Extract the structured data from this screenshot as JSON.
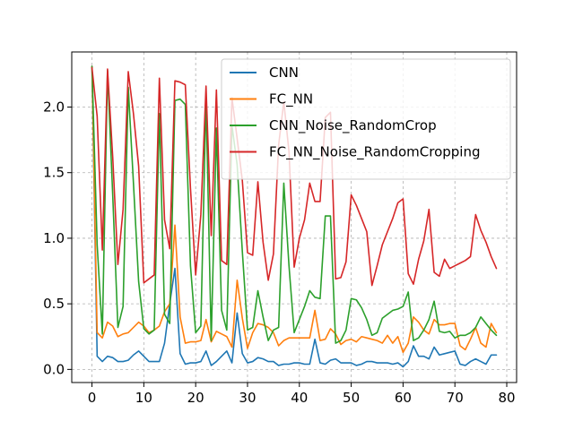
{
  "chart_data": {
    "type": "line",
    "title": "",
    "xlabel": "",
    "ylabel": "",
    "xlim": [
      -3.9,
      81.9
    ],
    "ylim": [
      -0.1,
      2.42
    ],
    "grid": true,
    "legend_location": "upper right",
    "x_ticks": [
      0,
      10,
      20,
      30,
      40,
      50,
      60,
      70,
      80
    ],
    "y_ticks": [
      0.0,
      0.5,
      1.0,
      1.5,
      2.0
    ],
    "x_tick_labels": [
      "0",
      "10",
      "20",
      "30",
      "40",
      "50",
      "60",
      "70",
      "80"
    ],
    "y_tick_labels": [
      "0.0",
      "0.5",
      "1.0",
      "1.5",
      "2.0"
    ],
    "series": [
      {
        "name": "CNN",
        "color": "#1f77b4",
        "x": [
          0,
          1,
          2,
          3,
          4,
          5,
          6,
          7,
          8,
          9,
          10,
          11,
          12,
          13,
          14,
          15,
          16,
          17,
          18,
          19,
          20,
          21,
          22,
          23,
          24,
          25,
          26,
          27,
          28,
          29,
          30,
          31,
          32,
          33,
          34,
          35,
          36,
          37,
          38,
          39,
          40,
          41,
          42,
          43,
          44,
          45,
          46,
          47,
          48,
          49,
          50,
          51,
          52,
          53,
          54,
          55,
          56,
          57,
          58,
          59,
          60,
          61,
          62,
          63,
          64,
          65,
          66,
          67,
          68,
          69,
          70,
          71,
          72,
          73,
          74,
          75,
          76,
          77,
          78
        ],
        "values": [
          2.31,
          0.1,
          0.06,
          0.1,
          0.09,
          0.06,
          0.06,
          0.07,
          0.11,
          0.14,
          0.1,
          0.06,
          0.06,
          0.06,
          0.2,
          0.5,
          0.77,
          0.12,
          0.04,
          0.05,
          0.05,
          0.06,
          0.14,
          0.03,
          0.06,
          0.1,
          0.14,
          0.05,
          0.43,
          0.12,
          0.05,
          0.06,
          0.09,
          0.08,
          0.06,
          0.06,
          0.03,
          0.04,
          0.04,
          0.05,
          0.05,
          0.04,
          0.04,
          0.23,
          0.05,
          0.04,
          0.07,
          0.08,
          0.05,
          0.05,
          0.05,
          0.03,
          0.04,
          0.06,
          0.06,
          0.05,
          0.05,
          0.05,
          0.04,
          0.05,
          0.02,
          0.06,
          0.18,
          0.1,
          0.1,
          0.08,
          0.17,
          0.11,
          0.12,
          0.13,
          0.14,
          0.04,
          0.03,
          0.06,
          0.08,
          0.06,
          0.04,
          0.11,
          0.11
        ]
      },
      {
        "name": "FC_NN",
        "color": "#ff7f0e",
        "x": [
          0,
          1,
          2,
          3,
          4,
          5,
          6,
          7,
          8,
          9,
          10,
          11,
          12,
          13,
          14,
          15,
          16,
          17,
          18,
          19,
          20,
          21,
          22,
          23,
          24,
          25,
          26,
          27,
          28,
          29,
          30,
          31,
          32,
          33,
          34,
          35,
          36,
          37,
          38,
          39,
          40,
          41,
          42,
          43,
          44,
          45,
          46,
          47,
          48,
          49,
          50,
          51,
          52,
          53,
          54,
          55,
          56,
          57,
          58,
          59,
          60,
          61,
          62,
          63,
          64,
          65,
          66,
          67,
          68,
          69,
          70,
          71,
          72,
          73,
          74,
          75,
          76,
          77,
          78
        ],
        "values": [
          2.31,
          0.28,
          0.24,
          0.36,
          0.33,
          0.25,
          0.27,
          0.28,
          0.32,
          0.36,
          0.33,
          0.28,
          0.3,
          0.33,
          0.44,
          0.5,
          1.1,
          0.4,
          0.2,
          0.21,
          0.21,
          0.22,
          0.38,
          0.21,
          0.29,
          0.27,
          0.25,
          0.17,
          0.68,
          0.39,
          0.16,
          0.28,
          0.35,
          0.34,
          0.32,
          0.28,
          0.18,
          0.22,
          0.24,
          0.24,
          0.24,
          0.24,
          0.24,
          0.45,
          0.22,
          0.23,
          0.31,
          0.27,
          0.19,
          0.22,
          0.23,
          0.21,
          0.25,
          0.24,
          0.23,
          0.22,
          0.2,
          0.26,
          0.2,
          0.25,
          0.13,
          0.2,
          0.4,
          0.36,
          0.3,
          0.27,
          0.38,
          0.34,
          0.34,
          0.35,
          0.35,
          0.18,
          0.15,
          0.23,
          0.32,
          0.2,
          0.17,
          0.35,
          0.28
        ]
      },
      {
        "name": "CNN_Noise_RandomCrop",
        "color": "#2ca02c",
        "x": [
          0,
          1,
          2,
          3,
          4,
          5,
          6,
          7,
          8,
          9,
          10,
          11,
          12,
          13,
          14,
          15,
          16,
          17,
          18,
          19,
          20,
          21,
          22,
          23,
          24,
          25,
          26,
          27,
          28,
          29,
          30,
          31,
          32,
          33,
          34,
          35,
          36,
          37,
          38,
          39,
          40,
          41,
          42,
          43,
          44,
          45,
          46,
          47,
          48,
          49,
          50,
          51,
          52,
          53,
          54,
          55,
          56,
          57,
          58,
          59,
          60,
          61,
          62,
          63,
          64,
          65,
          66,
          67,
          68,
          69,
          70,
          71,
          72,
          73,
          74,
          75,
          76,
          77,
          78
        ],
        "values": [
          2.31,
          0.95,
          0.27,
          2.28,
          1.33,
          0.32,
          0.48,
          2.15,
          1.42,
          0.67,
          0.31,
          0.27,
          0.3,
          1.95,
          0.42,
          0.35,
          2.05,
          2.06,
          2.02,
          0.79,
          0.28,
          0.33,
          2.07,
          0.22,
          1.84,
          0.45,
          0.3,
          1.86,
          1.56,
          0.9,
          0.3,
          0.32,
          0.6,
          0.4,
          0.22,
          0.3,
          0.32,
          1.42,
          0.79,
          0.28,
          0.38,
          0.48,
          0.6,
          0.55,
          0.54,
          1.17,
          1.17,
          0.2,
          0.22,
          0.3,
          0.54,
          0.53,
          0.47,
          0.38,
          0.26,
          0.28,
          0.39,
          0.42,
          0.45,
          0.46,
          0.48,
          0.59,
          0.22,
          0.24,
          0.3,
          0.38,
          0.52,
          0.29,
          0.28,
          0.29,
          0.24,
          0.26,
          0.26,
          0.28,
          0.32,
          0.4,
          0.35,
          0.3,
          0.26
        ]
      },
      {
        "name": "FC_NN_Noise_RandomCropping",
        "color": "#d62728",
        "x": [
          0,
          1,
          2,
          3,
          4,
          5,
          6,
          7,
          8,
          9,
          10,
          11,
          12,
          13,
          14,
          15,
          16,
          17,
          18,
          19,
          20,
          21,
          22,
          23,
          24,
          25,
          26,
          27,
          28,
          29,
          30,
          31,
          32,
          33,
          34,
          35,
          36,
          37,
          38,
          39,
          40,
          41,
          42,
          43,
          44,
          45,
          46,
          47,
          48,
          49,
          50,
          51,
          52,
          53,
          54,
          55,
          56,
          57,
          58,
          59,
          60,
          61,
          62,
          63,
          64,
          65,
          66,
          67,
          68,
          69,
          70,
          71,
          72,
          73,
          74,
          75,
          76,
          77,
          78
        ],
        "values": [
          2.3,
          1.93,
          0.91,
          2.29,
          1.62,
          0.8,
          1.22,
          2.27,
          1.95,
          1.55,
          0.66,
          0.69,
          0.72,
          2.22,
          1.14,
          0.92,
          2.2,
          2.19,
          2.17,
          1.38,
          0.72,
          1.18,
          2.16,
          1.02,
          2.13,
          0.83,
          0.8,
          2.07,
          1.76,
          1.44,
          0.89,
          0.87,
          1.43,
          0.97,
          0.68,
          0.88,
          1.71,
          2.04,
          1.66,
          0.78,
          1.0,
          1.14,
          1.42,
          1.28,
          1.28,
          1.92,
          1.96,
          0.69,
          0.7,
          0.82,
          1.33,
          1.25,
          1.15,
          1.05,
          0.64,
          0.79,
          0.95,
          1.05,
          1.15,
          1.27,
          1.3,
          0.73,
          0.65,
          0.84,
          0.98,
          1.22,
          0.74,
          0.71,
          0.84,
          0.77,
          0.79,
          0.81,
          0.83,
          0.86,
          1.18,
          1.06,
          0.97,
          0.86,
          0.77
        ]
      }
    ]
  }
}
